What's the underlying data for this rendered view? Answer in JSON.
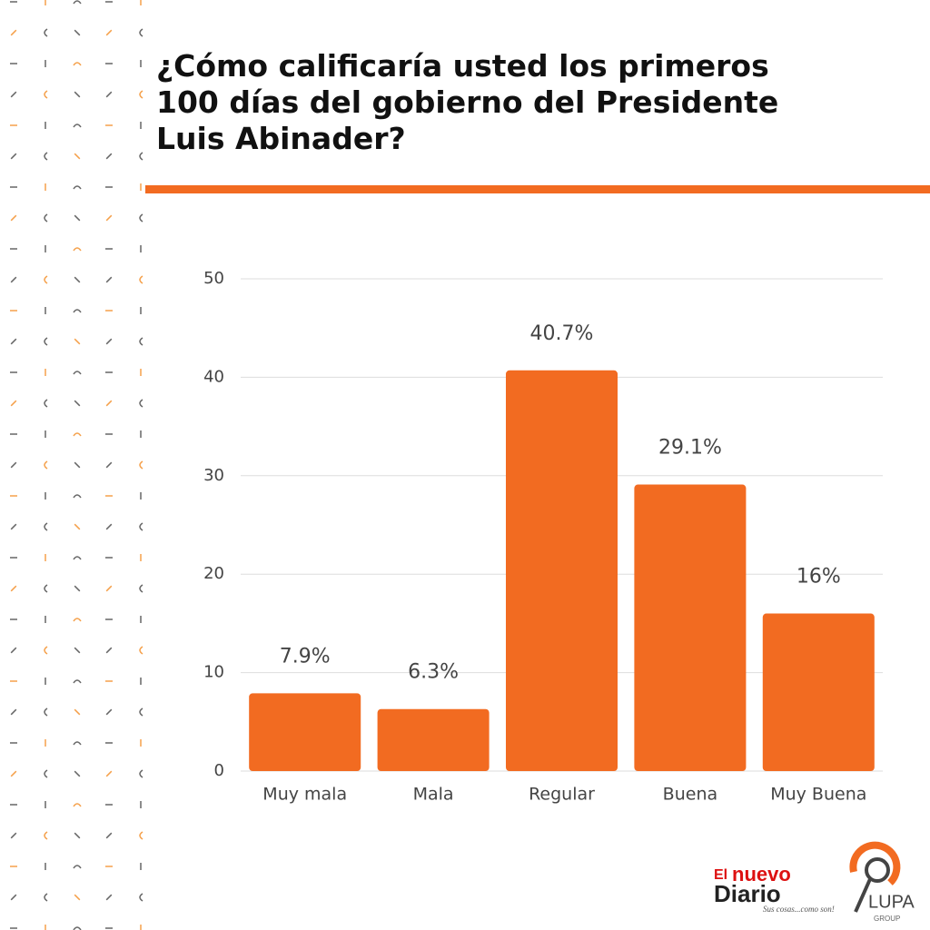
{
  "chart_data": {
    "type": "bar",
    "title": [
      "¿Cómo calificaría usted los primeros",
      "100 días del gobierno del Presidente",
      "Luis Abinader?"
    ],
    "categories": [
      "Muy mala",
      "Mala",
      "Regular",
      "Buena",
      "Muy Buena"
    ],
    "values": [
      7.9,
      6.3,
      40.7,
      29.1,
      16
    ],
    "value_labels": [
      "7.9%",
      "6.3%",
      "40.7%",
      "29.1%",
      "16%"
    ],
    "color": "#f26b21",
    "ylim": [
      0,
      50
    ],
    "yticks": [
      0,
      10,
      20,
      30,
      40,
      50
    ],
    "grid": true
  },
  "logos": {
    "nuevo_diario": [
      "El",
      "nuevo",
      "Diario"
    ],
    "tagline": "Sus cosas...como son!",
    "lupa": "LUPA",
    "group": "GROUP"
  }
}
